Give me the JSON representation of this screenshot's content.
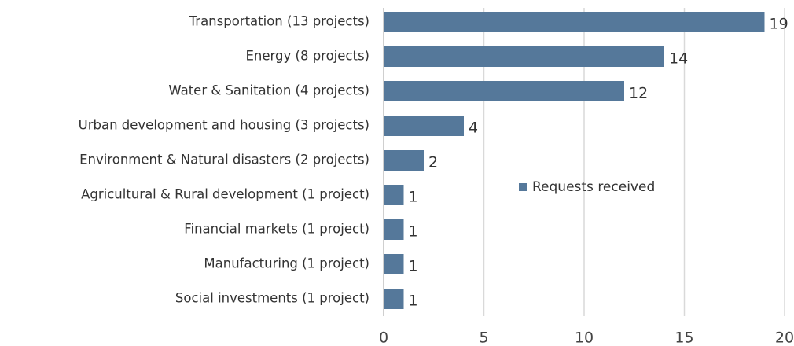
{
  "chart_data": {
    "type": "bar",
    "orientation": "horizontal",
    "categories": [
      "Transportation (13 projects)",
      "Energy (8 projects)",
      "Water & Sanitation (4 projects)",
      "Urban development and housing (3 projects)",
      "Environment & Natural disasters (2 projects)",
      "Agricultural & Rural development (1 project)",
      "Financial markets (1 project)",
      "Manufacturing (1 project)",
      "Social investments (1 project)"
    ],
    "series": [
      {
        "name": "Requests received",
        "color": "#55789a",
        "values": [
          19,
          14,
          12,
          4,
          2,
          1,
          1,
          1,
          1
        ]
      }
    ],
    "xlim": [
      0,
      20
    ],
    "xticks": [
      0,
      5,
      10,
      15,
      20
    ],
    "grid": true,
    "legend": "center"
  }
}
